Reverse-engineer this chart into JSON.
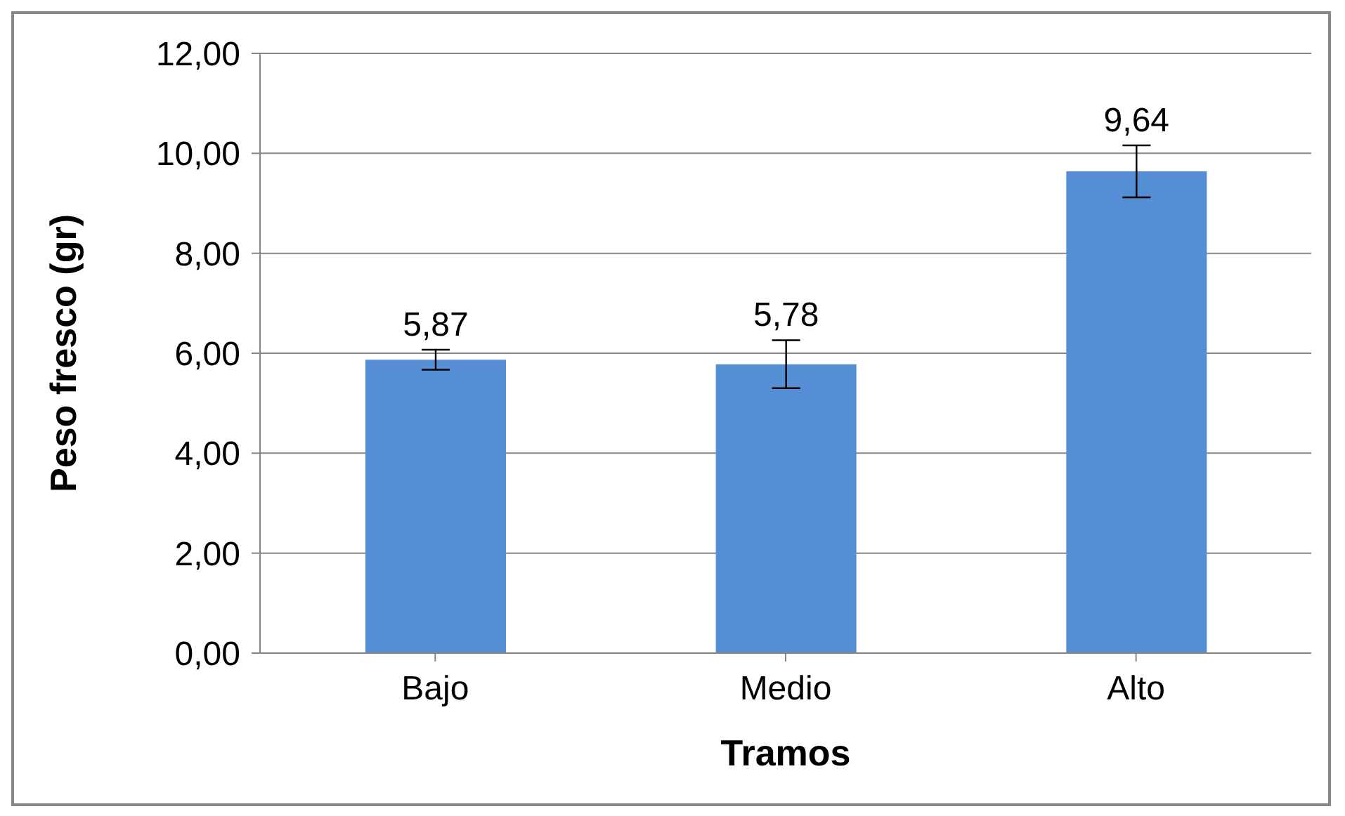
{
  "chart_data": {
    "type": "bar",
    "xlabel": "Tramos",
    "ylabel": "Peso fresco (gr)",
    "categories": [
      "Bajo",
      "Medio",
      "Alto"
    ],
    "values": [
      5.87,
      5.78,
      9.64
    ],
    "errors": [
      0.2,
      0.48,
      0.52
    ],
    "value_labels": [
      "5,87",
      "5,78",
      "9,64"
    ],
    "color": "#558ed5",
    "ylim": [
      0,
      12
    ],
    "yticks": [
      {
        "value": 0,
        "label": "0,00"
      },
      {
        "value": 2,
        "label": "2,00"
      },
      {
        "value": 4,
        "label": "4,00"
      },
      {
        "value": 6,
        "label": "6,00"
      },
      {
        "value": 8,
        "label": "8,00"
      },
      {
        "value": 10,
        "label": "10,00"
      },
      {
        "value": 12,
        "label": "12,00"
      }
    ],
    "grid": "y"
  }
}
